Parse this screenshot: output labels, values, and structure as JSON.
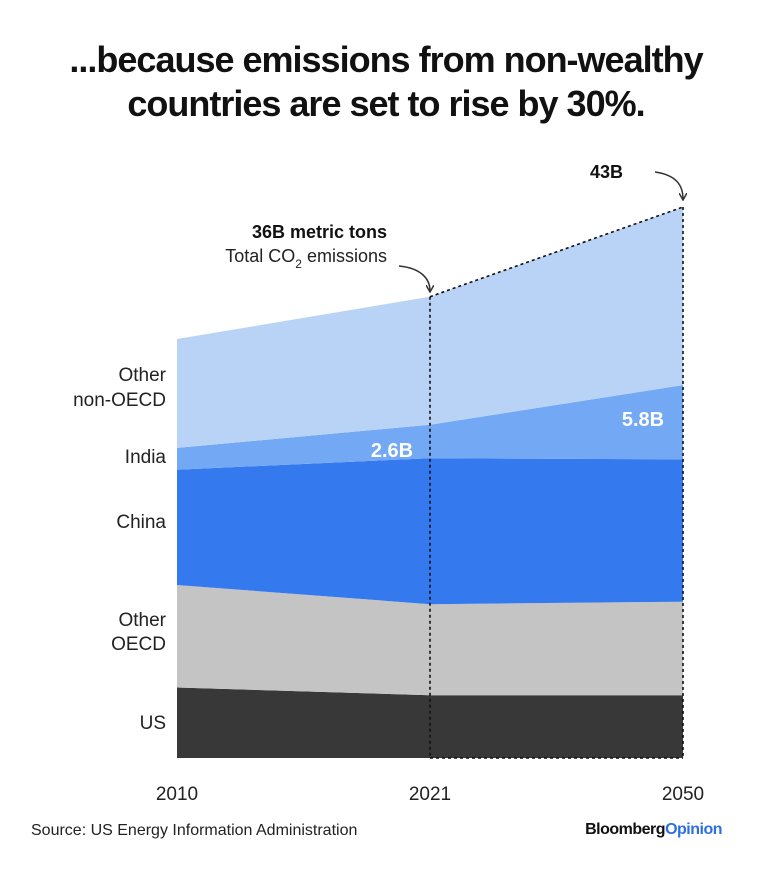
{
  "title_lines": [
    "...because emissions from non-wealthy",
    "countries are set to rise by 30%."
  ],
  "source": "Source: US Energy Information Administration",
  "brand": {
    "part1": "Bloomberg",
    "part2": "Opinion"
  },
  "chart_data": {
    "type": "area",
    "stacked": true,
    "x": [
      "2010",
      "2021",
      "2050"
    ],
    "series": [
      {
        "name": "US",
        "values": [
          5.5,
          4.9,
          4.9
        ],
        "color": "#383838"
      },
      {
        "name": "Other OECD",
        "values": [
          8.0,
          7.1,
          7.3
        ],
        "color": "#c4c4c4"
      },
      {
        "name": "China",
        "values": [
          9.0,
          11.4,
          11.1
        ],
        "color": "#3479ed"
      },
      {
        "name": "India",
        "values": [
          1.7,
          2.6,
          5.8
        ],
        "color": "#72a8f4"
      },
      {
        "name": "Other non-OECD",
        "values": [
          8.5,
          10.0,
          13.9
        ],
        "color": "#b9d3f7"
      }
    ],
    "category_labels": [
      {
        "series": "US",
        "lines": [
          "US"
        ]
      },
      {
        "series": "Other OECD",
        "lines": [
          "Other",
          "OECD"
        ]
      },
      {
        "series": "China",
        "lines": [
          "China"
        ]
      },
      {
        "series": "India",
        "lines": [
          "India"
        ]
      },
      {
        "series": "Other non-OECD",
        "lines": [
          "Other",
          "non-OECD"
        ]
      }
    ],
    "value_labels": [
      {
        "series": "India",
        "x": "2021",
        "text": "2.6B"
      },
      {
        "series": "India",
        "x": "2050",
        "text": "5.8B"
      }
    ],
    "annotations": [
      {
        "x": "2021",
        "total": 36,
        "bold": "36B metric tons",
        "text_prefix": "Total CO",
        "text_sub": "2",
        "text_suffix": " emissions"
      },
      {
        "x": "2050",
        "total": 43,
        "bold": "43B"
      }
    ],
    "ylim": [
      0,
      43
    ],
    "grid": false
  }
}
